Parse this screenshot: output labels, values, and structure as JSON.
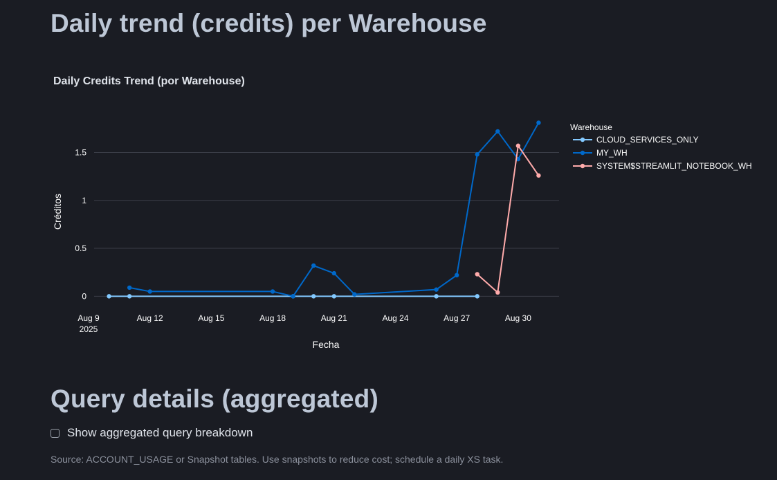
{
  "page": {
    "title": "Daily trend (credits) per Warehouse",
    "section_title": "Query details (aggregated)",
    "checkbox_label": "Show aggregated query breakdown",
    "caption": "Source: ACCOUNT_USAGE or Snapshot tables. Use snapshots to reduce cost; schedule a daily XS task."
  },
  "colors": {
    "background": "#1a1c23",
    "heading": "#bdc7d6",
    "grid": "#3a3d47",
    "text": "#fafafa"
  },
  "chart_data": {
    "type": "line",
    "title": "Daily Credits Trend (por Warehouse)",
    "xlabel": "Fecha",
    "ylabel": "Créditos",
    "x_ticks": [
      {
        "date": "2025-08-09",
        "label": "Aug 9",
        "sublabel": "2025"
      },
      {
        "date": "2025-08-12",
        "label": "Aug 12"
      },
      {
        "date": "2025-08-15",
        "label": "Aug 15"
      },
      {
        "date": "2025-08-18",
        "label": "Aug 18"
      },
      {
        "date": "2025-08-21",
        "label": "Aug 21"
      },
      {
        "date": "2025-08-24",
        "label": "Aug 24"
      },
      {
        "date": "2025-08-27",
        "label": "Aug 27"
      },
      {
        "date": "2025-08-30",
        "label": "Aug 30"
      }
    ],
    "y_ticks": [
      0,
      0.5,
      1,
      1.5
    ],
    "y_tick_labels": [
      "0",
      "0.5",
      "1",
      "1.5"
    ],
    "xlim": [
      "2025-08-09",
      "2025-09-01"
    ],
    "ylim": [
      -0.12,
      1.9
    ],
    "grid": true,
    "legend_title": "Warehouse",
    "legend_position": "right",
    "series": [
      {
        "name": "CLOUD_SERVICES_ONLY",
        "color": "#83c9ff",
        "x": [
          "2025-08-10",
          "2025-08-11",
          "2025-08-19",
          "2025-08-20",
          "2025-08-21",
          "2025-08-26",
          "2025-08-28"
        ],
        "y": [
          0,
          0,
          0,
          0,
          0,
          0,
          0
        ]
      },
      {
        "name": "MY_WH",
        "color": "#0068c9",
        "x": [
          "2025-08-11",
          "2025-08-12",
          "2025-08-18",
          "2025-08-19",
          "2025-08-20",
          "2025-08-21",
          "2025-08-22",
          "2025-08-26",
          "2025-08-27",
          "2025-08-28",
          "2025-08-29",
          "2025-08-30",
          "2025-08-31"
        ],
        "y": [
          0.09,
          0.05,
          0.05,
          0,
          0.32,
          0.24,
          0.02,
          0.07,
          0.22,
          1.48,
          1.72,
          1.43,
          1.81
        ]
      },
      {
        "name": "SYSTEM$STREAMLIT_NOTEBOOK_WH",
        "color": "#ffabab",
        "x": [
          "2025-08-28",
          "2025-08-29",
          "2025-08-30",
          "2025-08-31"
        ],
        "y": [
          0.23,
          0.04,
          1.57,
          1.26
        ]
      }
    ]
  }
}
